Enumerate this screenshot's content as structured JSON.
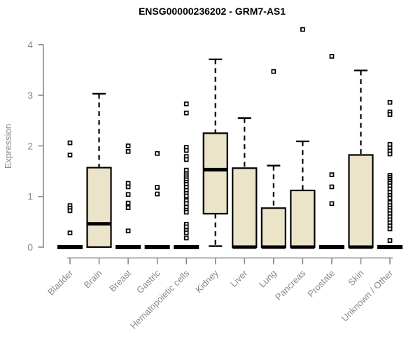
{
  "colors": {
    "box_fill": "#ebe4c9",
    "box_border": "#000000",
    "axis_color": "#8a8a8a",
    "title_color": "#000000"
  },
  "chart_data": {
    "type": "boxplot",
    "title": "ENSG00000236202 - GRM7-AS1",
    "ylabel": "Expression",
    "xlabel": "",
    "yticks": [
      0,
      1,
      2,
      3,
      4
    ],
    "ylim": [
      0,
      4.4
    ],
    "grid": false,
    "legend": false,
    "categories": [
      "Bladder",
      "Brain",
      "Breast",
      "Gastric",
      "Hematopoietic cells",
      "Kidney",
      "Liver",
      "Lung",
      "Pancreas",
      "Prostate",
      "Skin",
      "Unknown / Other"
    ],
    "boxes": [
      {
        "category": "Bladder",
        "whisker_low": 0,
        "q1": 0,
        "median": 0,
        "q3": 0,
        "whisker_high": 0,
        "outliers": [
          2.06,
          1.82,
          0.82,
          0.77,
          0.72,
          0.28
        ]
      },
      {
        "category": "Brain",
        "whisker_low": 0,
        "q1": 0,
        "median": 0.46,
        "q3": 1.57,
        "whisker_high": 3.03,
        "outliers": []
      },
      {
        "category": "Breast",
        "whisker_low": 0,
        "q1": 0,
        "median": 0,
        "q3": 0,
        "whisker_high": 0,
        "outliers": [
          2.0,
          1.89,
          1.26,
          1.19,
          1.04,
          0.87,
          0.78,
          0.32
        ]
      },
      {
        "category": "Gastric",
        "whisker_low": 0,
        "q1": 0,
        "median": 0,
        "q3": 0,
        "whisker_high": 0,
        "outliers": [
          1.85,
          1.18,
          1.05
        ]
      },
      {
        "category": "Hematopoietic cells",
        "whisker_low": 0,
        "q1": 0,
        "median": 0,
        "q3": 0,
        "whisker_high": 0,
        "outliers": [
          2.83,
          2.65,
          1.97,
          1.91,
          1.79,
          1.73,
          1.52,
          1.45,
          1.41,
          1.37,
          1.33,
          1.28,
          1.24,
          1.18,
          1.12,
          1.06,
          1.01,
          0.92,
          0.86,
          0.79,
          0.73,
          0.69,
          0.45,
          0.4,
          0.33,
          0.28,
          0.18
        ]
      },
      {
        "category": "Kidney",
        "whisker_low": 0.02,
        "q1": 0.66,
        "median": 1.53,
        "q3": 2.25,
        "whisker_high": 3.71,
        "outliers": []
      },
      {
        "category": "Liver",
        "whisker_low": 0,
        "q1": 0,
        "median": 0,
        "q3": 1.56,
        "whisker_high": 2.55,
        "outliers": []
      },
      {
        "category": "Lung",
        "whisker_low": 0,
        "q1": 0,
        "median": 0,
        "q3": 0.77,
        "whisker_high": 1.61,
        "outliers": [
          3.47
        ]
      },
      {
        "category": "Pancreas",
        "whisker_low": 0,
        "q1": 0,
        "median": 0,
        "q3": 1.12,
        "whisker_high": 2.09,
        "outliers": [
          4.3
        ]
      },
      {
        "category": "Prostate",
        "whisker_low": 0,
        "q1": 0,
        "median": 0,
        "q3": 0,
        "whisker_high": 0,
        "outliers": [
          3.77,
          1.43,
          1.19,
          0.86
        ]
      },
      {
        "category": "Skin",
        "whisker_low": 0,
        "q1": 0,
        "median": 0,
        "q3": 1.82,
        "whisker_high": 3.49,
        "outliers": []
      },
      {
        "category": "Unknown / Other",
        "whisker_low": 0,
        "q1": 0,
        "median": 0,
        "q3": 0,
        "whisker_high": 0,
        "outliers": [
          2.86,
          2.67,
          2.62,
          2.03,
          1.96,
          1.9,
          1.84,
          1.42,
          1.38,
          1.34,
          1.3,
          1.26,
          1.21,
          1.15,
          1.08,
          1.02,
          0.97,
          0.88,
          0.82,
          0.77,
          0.72,
          0.66,
          0.6,
          0.54,
          0.48,
          0.42,
          0.36,
          0.13
        ]
      }
    ]
  }
}
